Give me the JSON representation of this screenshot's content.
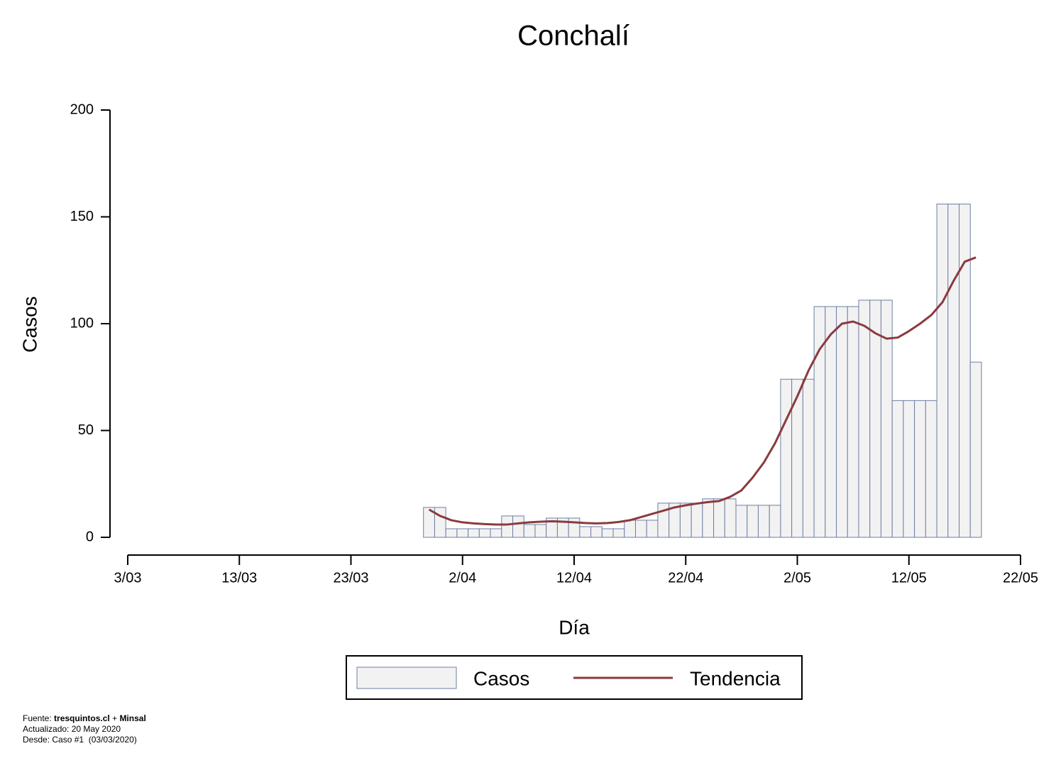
{
  "chart_data": {
    "type": "bar",
    "title": "Conchalí",
    "x_label": "Día",
    "y_label": "Casos",
    "x": [
      27,
      28,
      29,
      30,
      31,
      32,
      33,
      34,
      35,
      36,
      37,
      38,
      39,
      40,
      41,
      42,
      43,
      44,
      45,
      46,
      47,
      48,
      49,
      50,
      51,
      52,
      53,
      54,
      55,
      56,
      57,
      58,
      59,
      60,
      61,
      62,
      63,
      64,
      65,
      66,
      67,
      68,
      69,
      70,
      71,
      72,
      73,
      74,
      75,
      76
    ],
    "series": [
      {
        "name": "Casos",
        "type": "bar",
        "color": "#f2f2f2",
        "stroke": "#6e7fa3",
        "values": [
          14,
          14,
          4,
          4,
          4,
          4,
          4,
          10,
          10,
          6,
          6,
          9,
          9,
          9,
          5,
          5,
          4,
          4,
          8,
          8,
          8,
          16,
          16,
          16,
          16,
          18,
          18,
          18,
          15,
          15,
          15,
          15,
          74,
          74,
          74,
          108,
          108,
          108,
          108,
          111,
          111,
          111,
          64,
          64,
          64,
          64,
          156,
          156,
          156,
          82
        ]
      },
      {
        "name": "Tendencia",
        "type": "line",
        "color": "#8b3a3e",
        "values": [
          13,
          10,
          8,
          7,
          6.5,
          6.2,
          6,
          6,
          6.5,
          7,
          7.3,
          7.5,
          7.3,
          7,
          6.7,
          6.5,
          6.7,
          7.2,
          8,
          9.5,
          11,
          12.5,
          14,
          15,
          15.8,
          16.5,
          17,
          19,
          22,
          28,
          35,
          44,
          55,
          66,
          78,
          88,
          95,
          100,
          101,
          99,
          95.5,
          93,
          93.5,
          96.5,
          100,
          104,
          110,
          120,
          129,
          131
        ]
      }
    ],
    "xlim": [
      0,
      80
    ],
    "xticks": [
      {
        "value": 0,
        "label": "3/03"
      },
      {
        "value": 10,
        "label": "13/03"
      },
      {
        "value": 20,
        "label": "23/03"
      },
      {
        "value": 30,
        "label": "2/04"
      },
      {
        "value": 40,
        "label": "12/04"
      },
      {
        "value": 50,
        "label": "22/04"
      },
      {
        "value": 60,
        "label": "2/05"
      },
      {
        "value": 70,
        "label": "12/05"
      },
      {
        "value": 80,
        "label": "22/05"
      }
    ],
    "ylim": [
      0,
      200
    ],
    "yticks": [
      0,
      50,
      100,
      150,
      200
    ],
    "grid": false,
    "legend": "bottom"
  },
  "footer": {
    "fuente_label": "Fuente:",
    "source1": "tresquintos.cl",
    "plus": "+",
    "source2": "Minsal",
    "updated": "Actualizado: 20 May 2020",
    "since": "Desde: Caso #1  (03/03/2020)"
  }
}
